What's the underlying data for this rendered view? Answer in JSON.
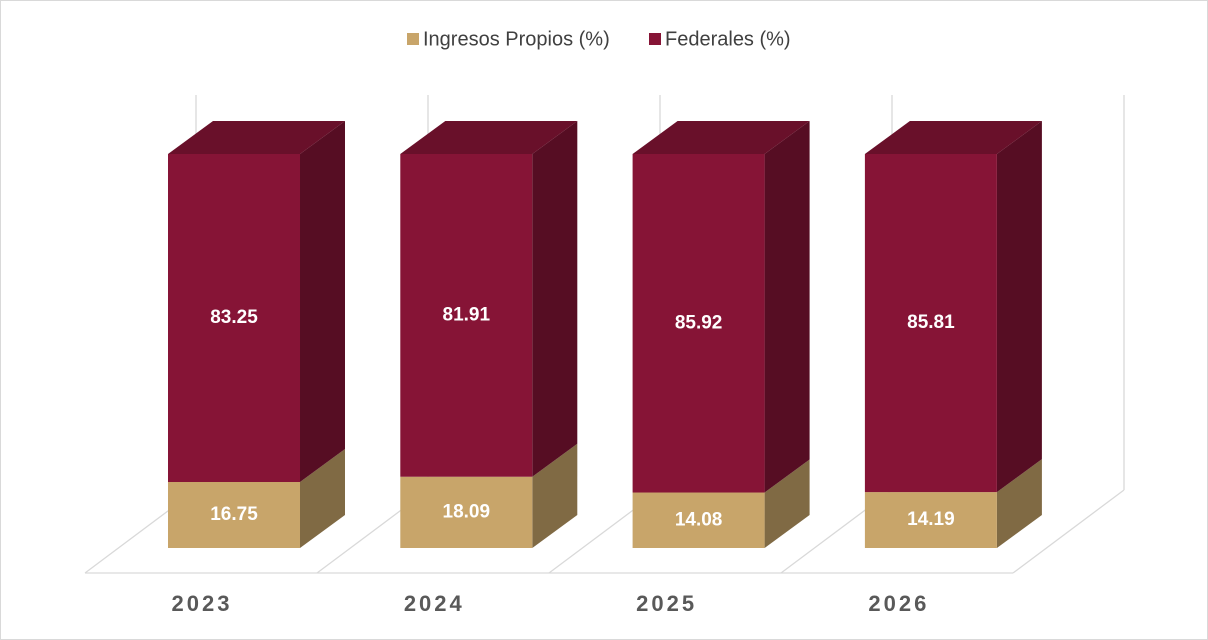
{
  "chart_data": {
    "type": "bar3d_stacked",
    "categories": [
      "2023",
      "2024",
      "2025",
      "2026"
    ],
    "series": [
      {
        "name": "Ingresos Propios (%)",
        "color": "#c8a56a",
        "values": [
          16.75,
          18.09,
          14.08,
          14.19
        ]
      },
      {
        "name": "Federales (%)",
        "color": "#861436",
        "values": [
          83.25,
          81.91,
          85.92,
          85.81
        ]
      }
    ],
    "ylim": [
      0,
      100
    ],
    "legend": "top"
  }
}
